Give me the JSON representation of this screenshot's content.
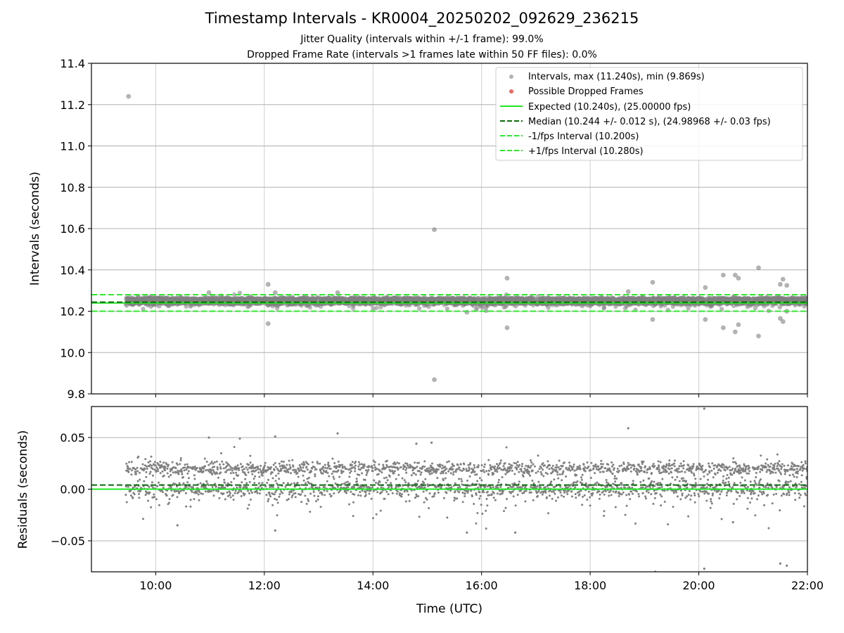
{
  "title": "Timestamp Intervals - KR0004_20250202_092629_236215",
  "subtitle_1": "Jitter Quality (intervals within +/-1 frame): 99.0%",
  "subtitle_2": "Dropped Frame Rate (intervals >1 frames late within 50 FF files): 0.0%",
  "colors": {
    "points": "#808080",
    "dropped": "#e8413b",
    "expected": "#1ee81e",
    "median": "#0a6b0a",
    "interval": "#2ee82e",
    "grid": "#b0b0b0"
  },
  "chart_data": [
    {
      "type": "scatter",
      "name": "intervals",
      "ylabel": "Intervals (seconds)",
      "ylim": [
        9.8,
        11.4
      ],
      "yticks": [
        9.8,
        10.0,
        10.2,
        10.4,
        10.6,
        10.8,
        11.0,
        11.2,
        11.4
      ],
      "ytick_labels": [
        "9.8",
        "10.0",
        "10.2",
        "10.4",
        "10.6",
        "10.8",
        "11.0",
        "11.2",
        "11.4"
      ],
      "xlim_hours": [
        8.8167,
        22.0
      ],
      "xticks_hours": [
        10,
        12,
        14,
        16,
        18,
        20,
        22
      ],
      "grid": true,
      "legend_position": "upper right",
      "legend": [
        "Intervals, max (11.240s), min (9.869s)",
        "Possible Dropped Frames",
        "Expected (10.240s), (25.00000 fps)",
        "Median (10.244 +/- 0.012 s), (24.98968 +/- 0.03 fps)",
        "-1/fps Interval (10.200s)",
        "+1/fps Interval (10.280s)"
      ],
      "lines": {
        "expected": 10.24,
        "median": 10.244,
        "minus_interval": 10.2,
        "plus_interval": 10.28
      },
      "outliers": [
        {
          "x": 9.5,
          "y": 11.24
        },
        {
          "x": 15.13,
          "y": 10.595
        },
        {
          "x": 15.13,
          "y": 9.869
        },
        {
          "x": 12.07,
          "y": 10.33
        },
        {
          "x": 12.07,
          "y": 10.14
        },
        {
          "x": 16.47,
          "y": 10.36
        },
        {
          "x": 16.47,
          "y": 10.12
        },
        {
          "x": 19.15,
          "y": 10.34
        },
        {
          "x": 19.15,
          "y": 10.16
        },
        {
          "x": 20.12,
          "y": 10.315
        },
        {
          "x": 20.12,
          "y": 10.16
        },
        {
          "x": 20.45,
          "y": 10.375
        },
        {
          "x": 20.45,
          "y": 10.12
        },
        {
          "x": 20.67,
          "y": 10.375
        },
        {
          "x": 20.67,
          "y": 10.1
        },
        {
          "x": 20.73,
          "y": 10.36
        },
        {
          "x": 20.73,
          "y": 10.135
        },
        {
          "x": 21.1,
          "y": 10.41
        },
        {
          "x": 21.1,
          "y": 10.08
        },
        {
          "x": 21.5,
          "y": 10.33
        },
        {
          "x": 21.5,
          "y": 10.165
        },
        {
          "x": 21.55,
          "y": 10.355
        },
        {
          "x": 21.55,
          "y": 10.15
        },
        {
          "x": 21.62,
          "y": 10.325
        },
        {
          "x": 21.62,
          "y": 10.2
        },
        {
          "x": 18.7,
          "y": 10.295
        },
        {
          "x": 13.35,
          "y": 10.29
        },
        {
          "x": 10.98,
          "y": 10.29
        },
        {
          "x": 12.2,
          "y": 10.29
        },
        {
          "x": 15.73,
          "y": 10.195
        }
      ]
    },
    {
      "type": "scatter",
      "name": "residuals",
      "xlabel": "Time (UTC)",
      "ylabel": "Residuals (seconds)",
      "ylim": [
        -0.08,
        0.08
      ],
      "yticks": [
        -0.05,
        0.0,
        0.05
      ],
      "ytick_labels": [
        "−0.05",
        "0.00",
        "0.05"
      ],
      "xlim_hours": [
        8.8167,
        22.0
      ],
      "xticks_hours": [
        10,
        12,
        14,
        16,
        18,
        20,
        22
      ],
      "xtick_labels": [
        "10:00",
        "12:00",
        "14:00",
        "16:00",
        "18:00",
        "20:00",
        "22:00"
      ],
      "grid": true,
      "lines": {
        "zero": 0.0,
        "median_offset": 0.004
      },
      "outliers": [
        {
          "x": 20.1,
          "y": 0.078
        },
        {
          "x": 20.1,
          "y": -0.077
        },
        {
          "x": 21.5,
          "y": -0.072
        },
        {
          "x": 21.62,
          "y": -0.074
        },
        {
          "x": 19.2,
          "y": -0.08
        },
        {
          "x": 18.7,
          "y": 0.059
        },
        {
          "x": 13.35,
          "y": 0.054
        },
        {
          "x": 12.2,
          "y": 0.051
        },
        {
          "x": 10.98,
          "y": 0.05
        },
        {
          "x": 15.08,
          "y": 0.045
        },
        {
          "x": 14.8,
          "y": 0.044
        },
        {
          "x": 15.73,
          "y": -0.042
        },
        {
          "x": 16.62,
          "y": -0.042
        },
        {
          "x": 20.63,
          "y": -0.032
        },
        {
          "x": 10.4,
          "y": -0.035
        },
        {
          "x": 12.2,
          "y": -0.04
        }
      ]
    }
  ]
}
